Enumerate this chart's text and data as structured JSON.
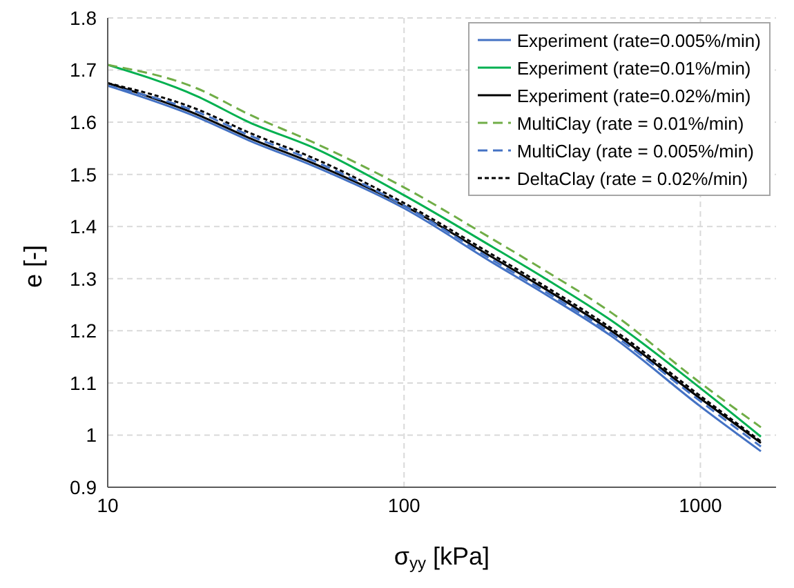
{
  "chart_data": {
    "type": "line",
    "xlabel": "σ$_{yy}$ [kPa]",
    "ylabel": "e [-]",
    "log": "x",
    "xlim": [
      10,
      1800
    ],
    "xticks": [
      10,
      100,
      1000
    ],
    "ylim": [
      0.9,
      1.8
    ],
    "yticks": [
      0.9,
      1,
      1.1,
      1.2,
      1.3,
      1.4,
      1.5,
      1.6,
      1.7,
      1.8
    ],
    "grid": true,
    "legend": "top right",
    "marker": "none",
    "x": [
      10,
      20,
      30,
      50,
      100,
      200,
      300,
      500,
      1000,
      1600
    ],
    "series": [
      {
        "name": "Experiment (rate=0.005%/min)",
        "color": "#4472c4",
        "line_style": "solid",
        "values": [
          1.67,
          1.61,
          1.565,
          1.515,
          1.435,
          1.33,
          1.27,
          1.19,
          1.055,
          0.969
        ]
      },
      {
        "name": "Experiment (rate=0.01%/min)",
        "color": "#00b050",
        "line_style": "solid",
        "values": [
          1.71,
          1.65,
          1.6,
          1.55,
          1.46,
          1.36,
          1.3,
          1.22,
          1.09,
          0.997
        ]
      },
      {
        "name": "Experiment (rate=0.02%/min)",
        "color": "#000000",
        "line_style": "solid",
        "values": [
          1.675,
          1.615,
          1.57,
          1.52,
          1.44,
          1.34,
          1.28,
          1.2,
          1.07,
          0.985
        ]
      },
      {
        "name": "MultiClay (rate = 0.01%/min)",
        "color": "#70ad47",
        "line_style": "dashed",
        "values": [
          1.71,
          1.665,
          1.615,
          1.56,
          1.475,
          1.375,
          1.315,
          1.235,
          1.1,
          1.015
        ]
      },
      {
        "name": "MultiClay (rate = 0.005%/min)",
        "color": "#4472c4",
        "line_style": "dashed",
        "values": [
          1.67,
          1.62,
          1.575,
          1.525,
          1.44,
          1.335,
          1.275,
          1.195,
          1.065,
          0.978
        ]
      },
      {
        "name": "DeltaClay (rate = 0.02%/min)",
        "color": "#000000",
        "line_style": "dotted",
        "values": [
          1.675,
          1.625,
          1.58,
          1.53,
          1.445,
          1.345,
          1.285,
          1.205,
          1.075,
          0.988
        ]
      }
    ]
  }
}
